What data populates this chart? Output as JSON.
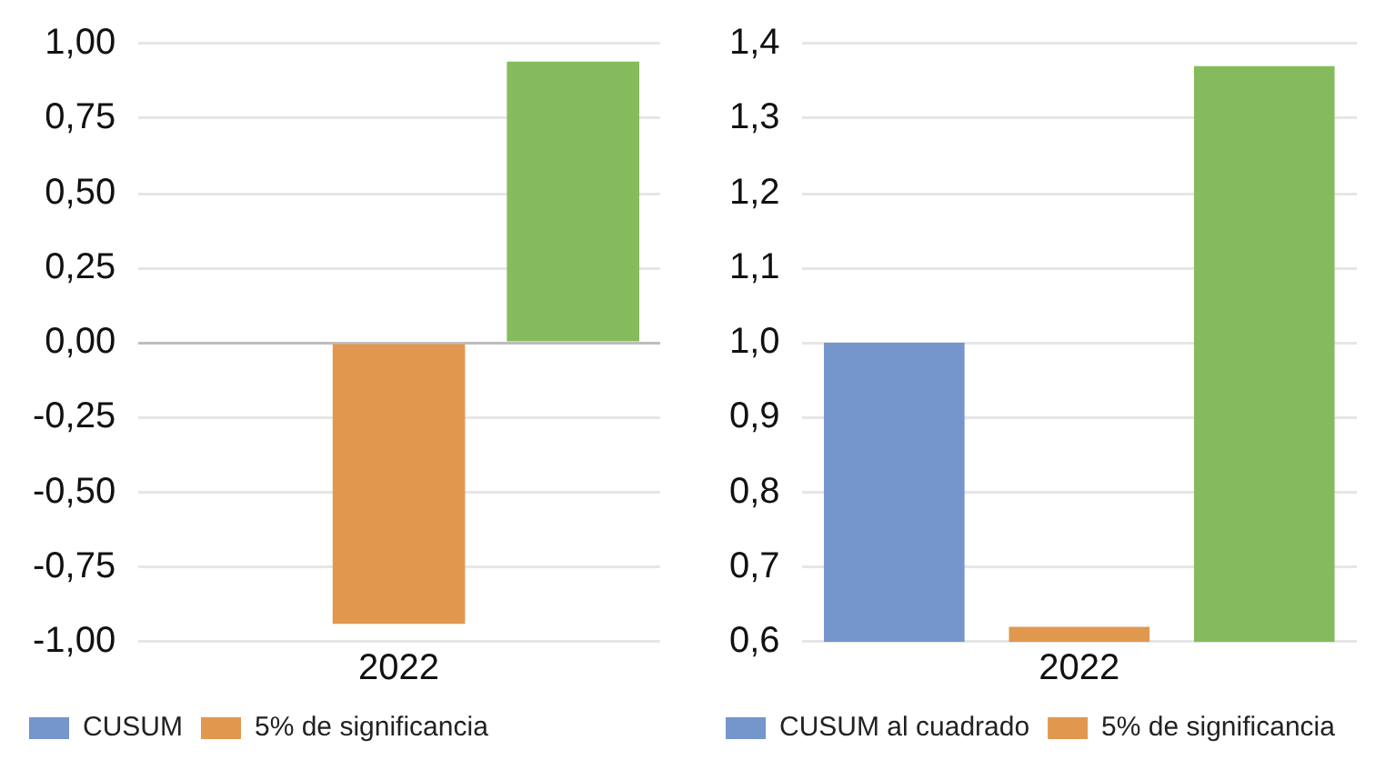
{
  "chart_data": [
    {
      "type": "bar",
      "categories": [
        null,
        "2022",
        null
      ],
      "series": [
        {
          "name": "CUSUM",
          "color": "#7596cc",
          "values": [
            0,
            null,
            null
          ]
        },
        {
          "name": "5% de significancia",
          "color": "#e0984f",
          "values": [
            null,
            -0.94,
            null
          ]
        },
        {
          "color": "#86bb5d",
          "values": [
            null,
            null,
            0.94
          ]
        }
      ],
      "ylim": [
        -1,
        1
      ],
      "yticks": [
        {
          "value": 1,
          "label": "1,00"
        },
        {
          "value": 0.75,
          "label": "0,75"
        },
        {
          "value": 0.5,
          "label": "0,50"
        },
        {
          "value": 0.25,
          "label": "0,25"
        },
        {
          "value": 0,
          "label": "0,00"
        },
        {
          "value": -0.25,
          "label": "-0,25"
        },
        {
          "value": -0.5,
          "label": "-0,50"
        },
        {
          "value": -0.75,
          "label": "-0,75"
        },
        {
          "value": -1,
          "label": "-1,00"
        }
      ],
      "grid": "y",
      "legend": "bottom"
    },
    {
      "type": "bar",
      "categories": [
        null,
        "2022",
        null
      ],
      "series": [
        {
          "name": "CUSUM al cuadrado",
          "color": "#7596cc",
          "values": [
            1.0,
            null,
            null
          ]
        },
        {
          "name": "5% de significancia",
          "color": "#e0984f",
          "values": [
            null,
            0.62,
            null
          ]
        },
        {
          "color": "#86bb5d",
          "values": [
            null,
            null,
            1.37
          ]
        }
      ],
      "ylim": [
        0.6,
        1.4
      ],
      "yticks": [
        {
          "value": 1.4,
          "label": "1,4"
        },
        {
          "value": 1.3,
          "label": "1,3"
        },
        {
          "value": 1.2,
          "label": "1,2"
        },
        {
          "value": 1.1,
          "label": "1,1"
        },
        {
          "value": 1.0,
          "label": "1,0"
        },
        {
          "value": 0.9,
          "label": "0,9"
        },
        {
          "value": 0.8,
          "label": "0,8"
        },
        {
          "value": 0.7,
          "label": "0,7"
        },
        {
          "value": 0.6,
          "label": "0,6"
        }
      ],
      "grid": "y",
      "legend": "bottom"
    }
  ]
}
